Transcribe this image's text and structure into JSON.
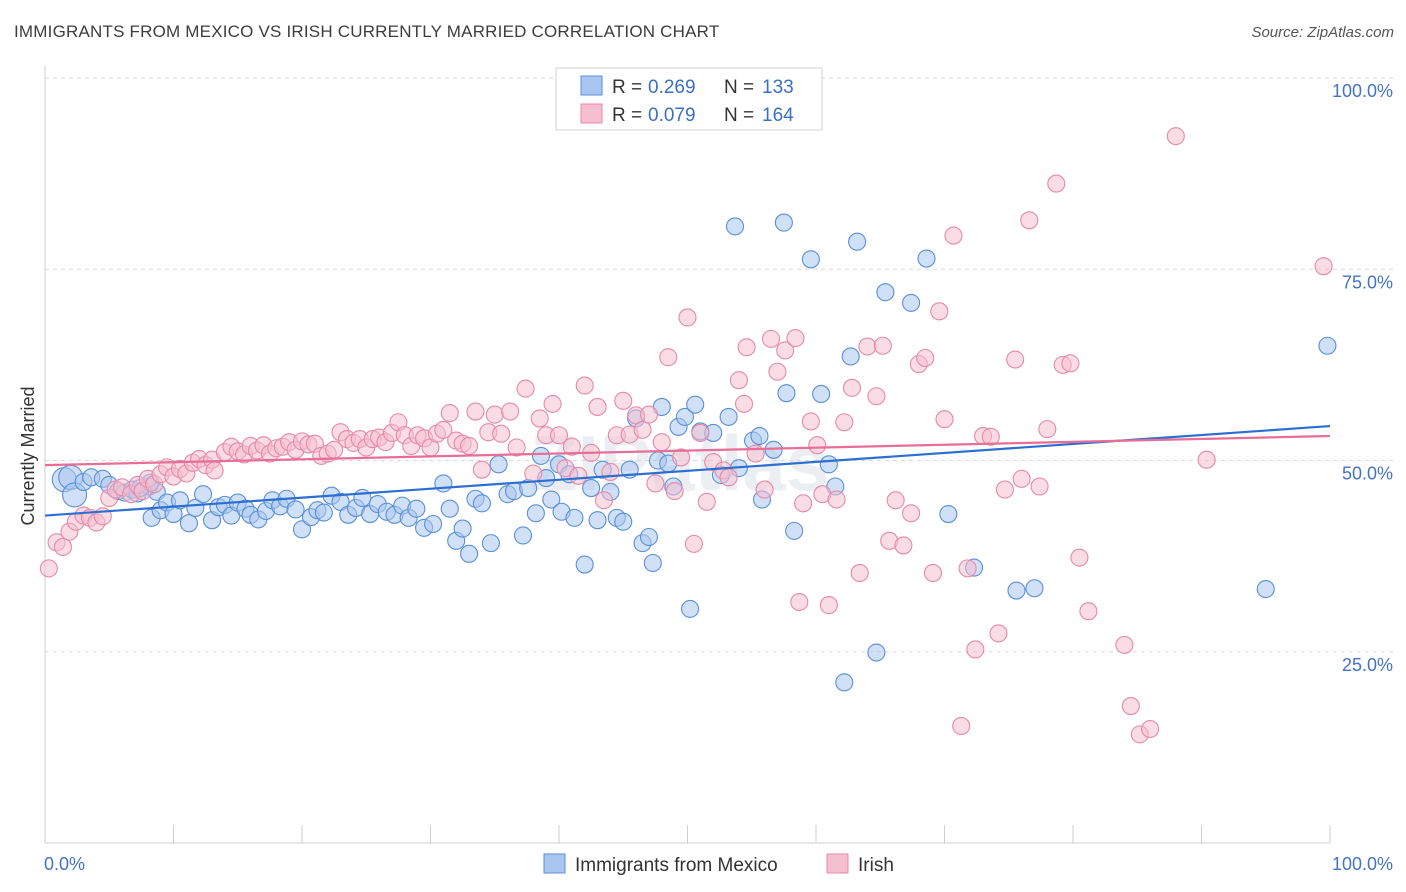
{
  "title": "IMMIGRANTS FROM MEXICO VS IRISH CURRENTLY MARRIED CORRELATION CHART",
  "source": "Source: ZipAtlas.com",
  "watermark": "ZIPatlas",
  "colors": {
    "blue_fill": "#a9c6f0",
    "blue_stroke": "#5b8fd8",
    "blue_line": "#2c6fd1",
    "pink_fill": "#f6bfcf",
    "pink_stroke": "#e58aa8",
    "pink_line": "#e86e96",
    "grid": "#d8d8d8",
    "tick_text": "#4472c4"
  },
  "legend": {
    "rows": [
      {
        "r_label": "R =",
        "r_value": "0.269",
        "n_label": "N =",
        "n_value": "133"
      },
      {
        "r_label": "R =",
        "r_value": "0.079",
        "n_label": "N =",
        "n_value": "164"
      }
    ]
  },
  "chart_data": {
    "type": "scatter",
    "xlabel": "",
    "ylabel": "Currently Married",
    "xlim": [
      0,
      100
    ],
    "ylim": [
      0,
      100
    ],
    "x_tick_labels": [
      "0.0%",
      "100.0%"
    ],
    "y_tick_labels": [
      "25.0%",
      "50.0%",
      "75.0%",
      "100.0%"
    ],
    "y_ticks": [
      25,
      50,
      75,
      100
    ],
    "grid": true,
    "legend_position": "top-center",
    "series": [
      {
        "name": "Immigrants from Mexico",
        "color": "#a9c6f0",
        "trend": {
          "x": [
            0,
            100
          ],
          "y": [
            42.8,
            54.5
          ]
        },
        "points": [
          [
            1.5,
            47.5
          ],
          [
            2.0,
            47.8
          ],
          [
            2.3,
            45.5
          ],
          [
            3.0,
            47.2
          ],
          [
            3.6,
            47.8
          ],
          [
            4.5,
            47.6
          ],
          [
            5.0,
            46.8
          ],
          [
            5.7,
            46.0
          ],
          [
            6.2,
            45.8
          ],
          [
            6.8,
            46.2
          ],
          [
            7.2,
            45.7
          ],
          [
            8.1,
            46.6
          ],
          [
            8.7,
            45.9
          ],
          [
            8.2,
            47.1
          ],
          [
            7.4,
            46.4
          ],
          [
            8.3,
            42.5
          ],
          [
            9.0,
            43.5
          ],
          [
            9.5,
            44.5
          ],
          [
            10.0,
            43.0
          ],
          [
            10.5,
            44.8
          ],
          [
            11.2,
            41.8
          ],
          [
            11.7,
            43.8
          ],
          [
            12.3,
            45.6
          ],
          [
            13.0,
            42.2
          ],
          [
            13.5,
            43.9
          ],
          [
            14.0,
            44.2
          ],
          [
            14.5,
            42.8
          ],
          [
            15.0,
            44.5
          ],
          [
            15.6,
            43.7
          ],
          [
            16.0,
            42.9
          ],
          [
            16.6,
            42.3
          ],
          [
            17.2,
            43.4
          ],
          [
            17.7,
            44.8
          ],
          [
            18.3,
            44.0
          ],
          [
            18.8,
            45.0
          ],
          [
            19.5,
            43.6
          ],
          [
            20.0,
            41.0
          ],
          [
            20.7,
            42.6
          ],
          [
            21.2,
            43.5
          ],
          [
            21.7,
            43.2
          ],
          [
            22.3,
            45.4
          ],
          [
            23.0,
            44.6
          ],
          [
            23.6,
            42.9
          ],
          [
            24.2,
            43.8
          ],
          [
            24.7,
            45.1
          ],
          [
            25.3,
            43.0
          ],
          [
            25.9,
            44.3
          ],
          [
            26.6,
            43.3
          ],
          [
            27.2,
            42.9
          ],
          [
            27.8,
            44.1
          ],
          [
            28.3,
            42.5
          ],
          [
            28.9,
            43.7
          ],
          [
            29.5,
            41.2
          ],
          [
            30.2,
            41.7
          ],
          [
            31.0,
            47.0
          ],
          [
            31.5,
            43.7
          ],
          [
            32.0,
            39.5
          ],
          [
            32.5,
            41.1
          ],
          [
            33.0,
            37.8
          ],
          [
            33.5,
            45.0
          ],
          [
            34.0,
            44.4
          ],
          [
            34.7,
            39.2
          ],
          [
            35.3,
            49.5
          ],
          [
            36.0,
            45.6
          ],
          [
            36.5,
            46.0
          ],
          [
            37.2,
            40.2
          ],
          [
            37.6,
            46.4
          ],
          [
            38.2,
            43.1
          ],
          [
            38.6,
            50.6
          ],
          [
            39.0,
            47.7
          ],
          [
            39.4,
            44.9
          ],
          [
            40.0,
            49.5
          ],
          [
            40.2,
            43.3
          ],
          [
            40.8,
            48.2
          ],
          [
            41.2,
            42.5
          ],
          [
            42.0,
            36.4
          ],
          [
            42.5,
            46.4
          ],
          [
            43.0,
            42.2
          ],
          [
            43.4,
            48.8
          ],
          [
            44.0,
            45.9
          ],
          [
            44.5,
            42.5
          ],
          [
            45.0,
            42.0
          ],
          [
            45.5,
            48.8
          ],
          [
            46.0,
            55.5
          ],
          [
            46.5,
            39.2
          ],
          [
            47.0,
            40.0
          ],
          [
            47.3,
            36.6
          ],
          [
            47.7,
            50.0
          ],
          [
            48.0,
            57.0
          ],
          [
            48.5,
            49.6
          ],
          [
            48.9,
            46.6
          ],
          [
            49.3,
            54.4
          ],
          [
            49.8,
            55.7
          ],
          [
            50.2,
            30.6
          ],
          [
            50.6,
            57.3
          ],
          [
            51.0,
            53.8
          ],
          [
            52.0,
            53.6
          ],
          [
            52.6,
            48.1
          ],
          [
            53.2,
            55.7
          ],
          [
            54.0,
            49.0
          ],
          [
            53.7,
            80.6
          ],
          [
            55.1,
            52.6
          ],
          [
            55.6,
            53.2
          ],
          [
            55.8,
            44.9
          ],
          [
            56.7,
            51.4
          ],
          [
            57.5,
            81.1
          ],
          [
            57.7,
            58.8
          ],
          [
            58.3,
            40.8
          ],
          [
            59.6,
            76.3
          ],
          [
            60.4,
            58.7
          ],
          [
            61.0,
            49.5
          ],
          [
            61.5,
            46.6
          ],
          [
            62.2,
            21.0
          ],
          [
            62.7,
            63.6
          ],
          [
            63.2,
            78.6
          ],
          [
            64.7,
            24.9
          ],
          [
            65.4,
            72.0
          ],
          [
            67.4,
            70.6
          ],
          [
            68.6,
            76.4
          ],
          [
            70.3,
            43.0
          ],
          [
            72.3,
            36.0
          ],
          [
            75.6,
            33.0
          ],
          [
            77.0,
            33.3
          ],
          [
            95.0,
            33.2
          ],
          [
            99.8,
            65.0
          ]
        ]
      },
      {
        "name": "Irish",
        "color": "#f6bfcf",
        "trend": {
          "x": [
            0,
            100
          ],
          "y": [
            49.4,
            53.2
          ]
        },
        "points": [
          [
            0.3,
            35.9
          ],
          [
            0.9,
            39.3
          ],
          [
            1.4,
            38.7
          ],
          [
            1.9,
            40.7
          ],
          [
            2.4,
            42.0
          ],
          [
            3.0,
            42.8
          ],
          [
            3.5,
            42.5
          ],
          [
            4.0,
            41.9
          ],
          [
            4.5,
            42.7
          ],
          [
            5.0,
            45.1
          ],
          [
            5.5,
            46.2
          ],
          [
            6.0,
            46.5
          ],
          [
            6.7,
            45.6
          ],
          [
            7.2,
            46.8
          ],
          [
            7.6,
            46.0
          ],
          [
            8.0,
            47.6
          ],
          [
            8.5,
            46.9
          ],
          [
            9.0,
            48.2
          ],
          [
            9.5,
            49.1
          ],
          [
            10.0,
            47.9
          ],
          [
            10.5,
            48.9
          ],
          [
            11.0,
            48.3
          ],
          [
            11.5,
            49.7
          ],
          [
            12.0,
            50.2
          ],
          [
            12.5,
            49.4
          ],
          [
            13.0,
            50.1
          ],
          [
            13.2,
            48.7
          ],
          [
            14.0,
            51.1
          ],
          [
            14.5,
            51.8
          ],
          [
            15.0,
            51.2
          ],
          [
            15.5,
            50.8
          ],
          [
            16.0,
            51.9
          ],
          [
            16.5,
            51.3
          ],
          [
            17.0,
            52.0
          ],
          [
            17.5,
            50.9
          ],
          [
            18.0,
            51.6
          ],
          [
            18.5,
            51.8
          ],
          [
            19.0,
            52.4
          ],
          [
            19.5,
            51.4
          ],
          [
            20.0,
            52.5
          ],
          [
            20.5,
            52.1
          ],
          [
            21.0,
            52.2
          ],
          [
            21.5,
            50.6
          ],
          [
            22.0,
            50.9
          ],
          [
            22.5,
            51.4
          ],
          [
            23.0,
            53.7
          ],
          [
            23.5,
            52.8
          ],
          [
            24.0,
            52.3
          ],
          [
            24.5,
            52.8
          ],
          [
            25.0,
            51.7
          ],
          [
            25.5,
            52.8
          ],
          [
            26.0,
            53.0
          ],
          [
            26.5,
            52.4
          ],
          [
            27.0,
            53.6
          ],
          [
            27.5,
            55.0
          ],
          [
            28.0,
            53.3
          ],
          [
            28.5,
            51.9
          ],
          [
            29.0,
            53.3
          ],
          [
            29.5,
            52.9
          ],
          [
            30.0,
            51.7
          ],
          [
            30.5,
            53.5
          ],
          [
            31.0,
            54.0
          ],
          [
            31.5,
            56.2
          ],
          [
            32.0,
            52.6
          ],
          [
            32.5,
            52.2
          ],
          [
            33.0,
            51.9
          ],
          [
            33.5,
            56.4
          ],
          [
            34.0,
            48.8
          ],
          [
            34.5,
            53.7
          ],
          [
            35.0,
            56.0
          ],
          [
            35.5,
            53.5
          ],
          [
            36.2,
            56.4
          ],
          [
            36.7,
            51.7
          ],
          [
            37.4,
            59.4
          ],
          [
            38.0,
            48.3
          ],
          [
            38.5,
            55.5
          ],
          [
            39.0,
            53.3
          ],
          [
            39.5,
            57.4
          ],
          [
            40.0,
            53.3
          ],
          [
            40.5,
            49.0
          ],
          [
            41.0,
            51.8
          ],
          [
            41.5,
            48.0
          ],
          [
            42.0,
            59.8
          ],
          [
            42.5,
            51.0
          ],
          [
            43.0,
            57.0
          ],
          [
            43.5,
            44.8
          ],
          [
            44.0,
            48.5
          ],
          [
            44.5,
            53.3
          ],
          [
            45.0,
            57.8
          ],
          [
            45.5,
            53.4
          ],
          [
            46.0,
            55.9
          ],
          [
            46.5,
            54.0
          ],
          [
            47.0,
            56.0
          ],
          [
            47.5,
            47.0
          ],
          [
            48.0,
            52.4
          ],
          [
            48.5,
            63.5
          ],
          [
            49.0,
            46.0
          ],
          [
            49.5,
            50.4
          ],
          [
            50.0,
            68.7
          ],
          [
            50.5,
            39.1
          ],
          [
            51.0,
            53.6
          ],
          [
            51.5,
            44.6
          ],
          [
            52.0,
            49.8
          ],
          [
            52.8,
            48.7
          ],
          [
            53.2,
            47.8
          ],
          [
            54.0,
            60.5
          ],
          [
            54.4,
            57.4
          ],
          [
            54.6,
            64.8
          ],
          [
            55.3,
            50.9
          ],
          [
            56.0,
            46.2
          ],
          [
            56.5,
            65.9
          ],
          [
            57.0,
            61.6
          ],
          [
            57.6,
            64.4
          ],
          [
            58.4,
            66.0
          ],
          [
            58.7,
            31.5
          ],
          [
            59.0,
            44.4
          ],
          [
            59.6,
            55.1
          ],
          [
            60.1,
            52.0
          ],
          [
            60.5,
            45.6
          ],
          [
            61.0,
            31.1
          ],
          [
            61.6,
            44.9
          ],
          [
            62.2,
            55.0
          ],
          [
            62.8,
            59.5
          ],
          [
            63.4,
            35.3
          ],
          [
            64.0,
            64.9
          ],
          [
            64.7,
            58.4
          ],
          [
            65.2,
            65.0
          ],
          [
            65.7,
            39.5
          ],
          [
            66.2,
            44.8
          ],
          [
            66.8,
            38.9
          ],
          [
            67.4,
            43.1
          ],
          [
            68.0,
            62.6
          ],
          [
            68.5,
            63.4
          ],
          [
            69.1,
            35.3
          ],
          [
            69.6,
            69.5
          ],
          [
            70.0,
            55.4
          ],
          [
            70.7,
            79.4
          ],
          [
            71.3,
            15.3
          ],
          [
            71.8,
            35.9
          ],
          [
            72.4,
            25.3
          ],
          [
            73.0,
            53.2
          ],
          [
            73.6,
            53.1
          ],
          [
            74.2,
            27.4
          ],
          [
            74.7,
            46.2
          ],
          [
            75.5,
            63.2
          ],
          [
            76.0,
            47.6
          ],
          [
            76.6,
            81.4
          ],
          [
            77.4,
            46.6
          ],
          [
            78.0,
            54.1
          ],
          [
            78.7,
            86.2
          ],
          [
            79.2,
            62.5
          ],
          [
            79.8,
            62.7
          ],
          [
            80.5,
            37.3
          ],
          [
            81.2,
            30.3
          ],
          [
            84.0,
            25.9
          ],
          [
            84.5,
            17.9
          ],
          [
            85.2,
            14.2
          ],
          [
            86.0,
            14.9
          ],
          [
            88.0,
            92.4
          ],
          [
            90.4,
            50.1
          ],
          [
            99.5,
            75.4
          ]
        ]
      }
    ]
  },
  "bottom_legend": [
    {
      "label": "Immigrants from Mexico"
    },
    {
      "label": "Irish"
    }
  ]
}
